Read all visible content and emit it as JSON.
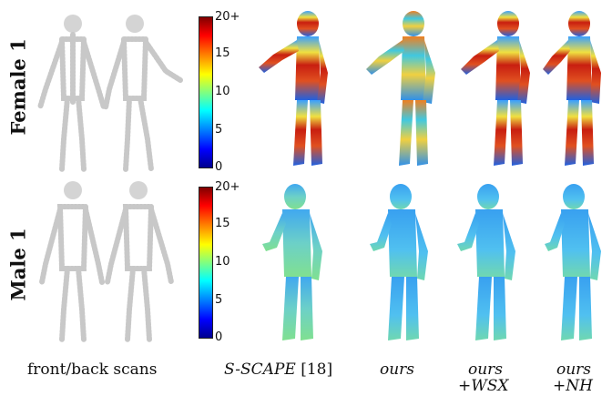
{
  "rows": [
    {
      "label": "Female 1"
    },
    {
      "label": "Male 1"
    }
  ],
  "colorbar": {
    "ticks": [
      "20+",
      "15",
      "10",
      "5",
      "0"
    ]
  },
  "captions": {
    "scans": "front/back scans",
    "sscape_name": "S-SCAPE",
    "sscape_ref": "[18]",
    "ours": "ours",
    "ours_wsx_line1": "ours",
    "ours_wsx_line2": "+WSX",
    "ours_nh_line1": "ours",
    "ours_nh_line2": "+NH"
  },
  "colors": {
    "scan_gray": "#c8c8c8",
    "female_hot": "#c81e10",
    "male_cool": "#4fb8e8"
  }
}
